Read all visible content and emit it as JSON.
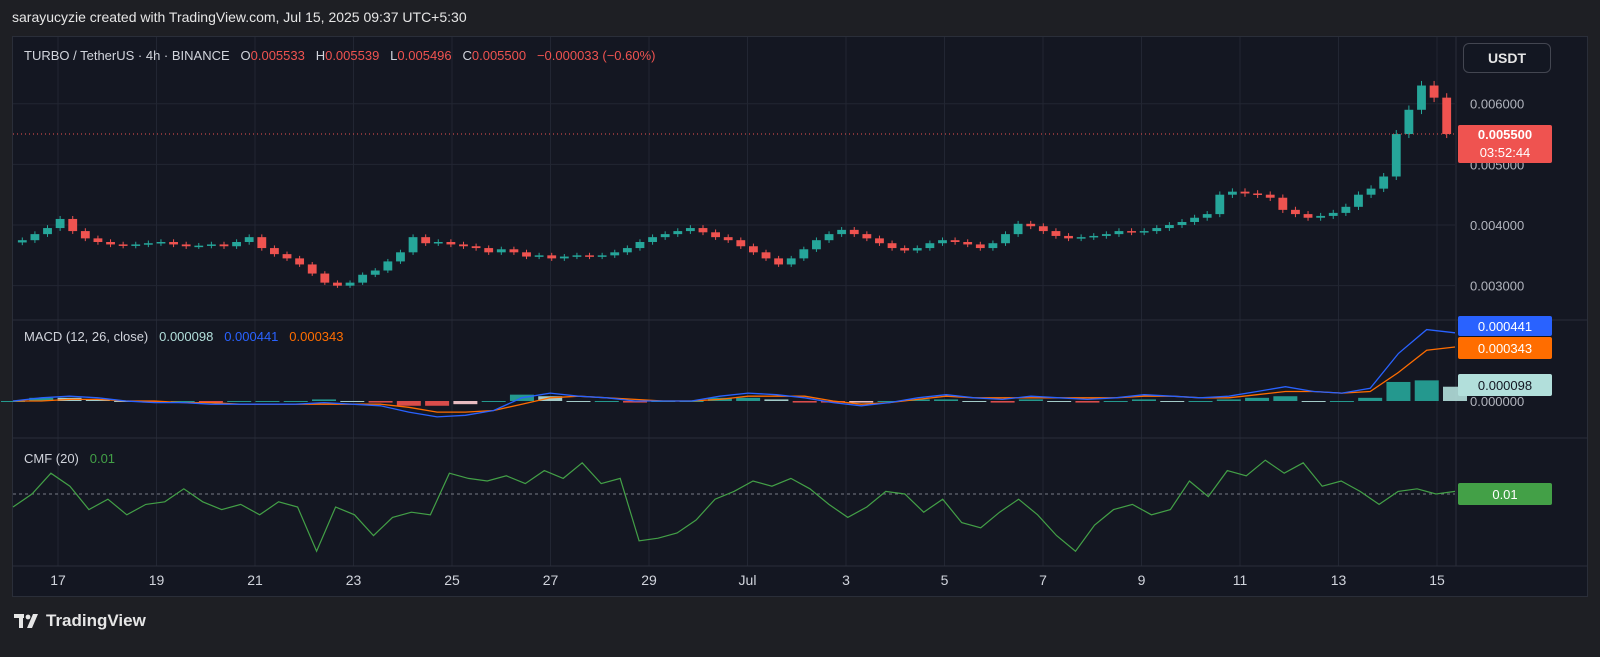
{
  "attribution": "sarayucyzie created with TradingView.com, Jul 15, 2025 09:37 UTC+5:30",
  "symbol": {
    "title": "TURBO / TetherUS · 4h · BINANCE",
    "o_label": "O",
    "o_value": "0.005533",
    "h_label": "H",
    "h_value": "0.005539",
    "l_label": "L",
    "l_value": "0.005496",
    "c_label": "C",
    "c_value": "0.005500",
    "change": "−0.000033 (−0.60%)"
  },
  "currency_button": "USDT",
  "price_badge": {
    "price": "0.005500",
    "countdown": "03:52:44"
  },
  "macd": {
    "title": "MACD (12, 26, close)",
    "hist": "0.000098",
    "macd": "0.000441",
    "signal": "0.000343",
    "zero_label": "0.000000"
  },
  "cmf": {
    "title": "CMF (20)",
    "value": "0.01"
  },
  "footer": {
    "brand": "TradingView",
    "logo_icon": "tradingview-logo-icon"
  },
  "colors": {
    "up": "#26a69a",
    "down": "#ef5350",
    "macd": "#2962ff",
    "signal": "#ff6d00",
    "hist_up": "#26a69a",
    "hist_up_light": "#b2dfdb",
    "hist_down": "#ef5350",
    "hist_down_light": "#ffcdd2",
    "cmf": "#43a047"
  },
  "chart_data": {
    "type": "candlestick",
    "price_axis": {
      "ticks": [
        "0.006000",
        "0.005000",
        "0.004000",
        "0.003000"
      ],
      "range": [
        0.0025,
        0.0071
      ]
    },
    "x_axis": {
      "ticks": [
        "17",
        "19",
        "21",
        "23",
        "25",
        "27",
        "29",
        "Jul",
        "3",
        "5",
        "7",
        "9",
        "11",
        "13",
        "15"
      ]
    },
    "close_series": [
      0.00375,
      0.00385,
      0.00395,
      0.0041,
      0.0039,
      0.00378,
      0.00372,
      0.00368,
      0.00366,
      0.00368,
      0.0037,
      0.00372,
      0.00368,
      0.00365,
      0.00366,
      0.00368,
      0.00365,
      0.00372,
      0.0038,
      0.00362,
      0.00352,
      0.00345,
      0.00335,
      0.0032,
      0.00305,
      0.003,
      0.00305,
      0.00318,
      0.00325,
      0.0034,
      0.00355,
      0.0038,
      0.0037,
      0.00372,
      0.00368,
      0.00365,
      0.00362,
      0.00355,
      0.0036,
      0.00355,
      0.00348,
      0.0035,
      0.00345,
      0.00348,
      0.0035,
      0.00348,
      0.0035,
      0.00355,
      0.00362,
      0.00372,
      0.0038,
      0.00385,
      0.0039,
      0.00395,
      0.00388,
      0.0038,
      0.00375,
      0.00365,
      0.00355,
      0.00345,
      0.00335,
      0.00345,
      0.0036,
      0.00375,
      0.00385,
      0.00392,
      0.00385,
      0.00378,
      0.0037,
      0.00362,
      0.00358,
      0.00362,
      0.0037,
      0.00375,
      0.00372,
      0.00368,
      0.00362,
      0.0037,
      0.00385,
      0.00402,
      0.00398,
      0.0039,
      0.00382,
      0.00378,
      0.0038,
      0.00382,
      0.00385,
      0.0039,
      0.00388,
      0.0039,
      0.00395,
      0.004,
      0.00405,
      0.00412,
      0.00418,
      0.0045,
      0.00455,
      0.00452,
      0.0045,
      0.00445,
      0.00425,
      0.00418,
      0.00412,
      0.00415,
      0.0042,
      0.0043,
      0.0045,
      0.0046,
      0.0048,
      0.0055,
      0.0059,
      0.0063,
      0.0061,
      0.0055
    ],
    "macd_series": {
      "macd": [
        0.0,
        2e-05,
        3e-05,
        2e-05,
        0.0,
        -1e-05,
        -1e-05,
        -2e-05,
        -2e-05,
        -2e-05,
        -2e-05,
        -1e-05,
        -2e-05,
        -3e-05,
        -7e-05,
        -0.0001,
        -9e-05,
        -6e-05,
        2e-05,
        5e-05,
        3e-05,
        2e-05,
        0.0,
        0.0,
        0.0,
        3e-05,
        5e-05,
        4e-05,
        2e-05,
        -1e-05,
        -3e-05,
        -1e-05,
        2e-05,
        4e-05,
        2e-05,
        1e-05,
        3e-05,
        2e-05,
        1e-05,
        2e-05,
        4e-05,
        3e-05,
        2e-05,
        3e-05,
        6e-05,
        9e-05,
        6e-05,
        5e-05,
        8e-05,
        0.0003,
        0.00045,
        0.00043
      ],
      "signal": [
        0.0,
        0.0,
        1e-05,
        1e-05,
        0.0,
        0.0,
        -1e-05,
        -1e-05,
        -2e-05,
        -2e-05,
        -2e-05,
        -2e-05,
        -2e-05,
        -2e-05,
        -4e-05,
        -7e-05,
        -7e-05,
        -6e-05,
        -2e-05,
        2e-05,
        3e-05,
        2e-05,
        1e-05,
        0.0,
        0.0,
        1e-05,
        3e-05,
        3e-05,
        3e-05,
        0.0,
        -2e-05,
        -1e-05,
        1e-05,
        3e-05,
        2e-05,
        2e-05,
        2e-05,
        2e-05,
        2e-05,
        2e-05,
        3e-05,
        3e-05,
        2e-05,
        2e-05,
        4e-05,
        6e-05,
        6e-05,
        5e-05,
        6e-05,
        0.00018,
        0.00032,
        0.00034
      ]
    },
    "cmf_series": [
      -0.05,
      0.0,
      0.08,
      0.03,
      -0.06,
      -0.02,
      -0.08,
      -0.04,
      -0.03,
      0.02,
      -0.03,
      -0.06,
      -0.04,
      -0.08,
      -0.03,
      -0.05,
      -0.22,
      -0.05,
      -0.08,
      -0.16,
      -0.09,
      -0.07,
      -0.08,
      0.08,
      0.06,
      0.05,
      0.07,
      0.04,
      0.09,
      0.06,
      0.12,
      0.04,
      0.06,
      -0.18,
      -0.17,
      -0.15,
      -0.1,
      -0.02,
      0.01,
      0.05,
      0.03,
      0.06,
      0.02,
      -0.04,
      -0.09,
      -0.05,
      0.01,
      0.0,
      -0.07,
      -0.02,
      -0.11,
      -0.13,
      -0.07,
      -0.02,
      -0.08,
      -0.16,
      -0.22,
      -0.12,
      -0.06,
      -0.04,
      -0.08,
      -0.06,
      0.05,
      -0.01,
      0.09,
      0.07,
      0.13,
      0.08,
      0.12,
      0.03,
      0.05,
      0.01,
      -0.04,
      0.01,
      0.02,
      0.0,
      0.01
    ]
  }
}
